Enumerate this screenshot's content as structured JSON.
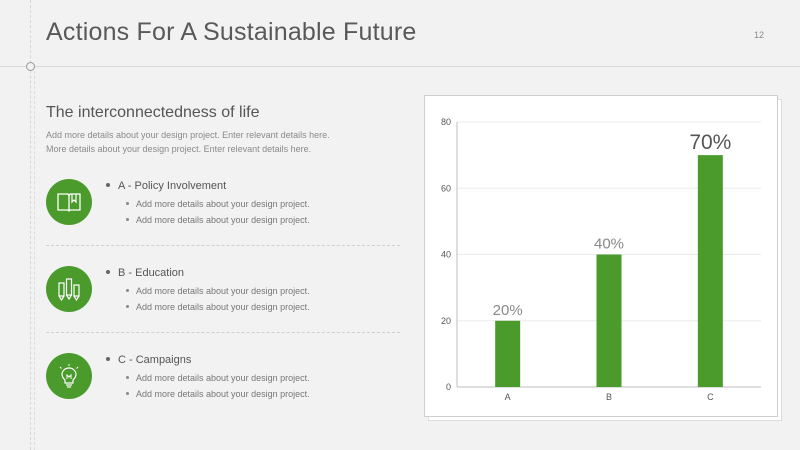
{
  "page": {
    "title": "Actions For A Sustainable Future",
    "page_number": "12"
  },
  "section": {
    "subtitle": "The interconnectedness of life",
    "description_line1": "Add more details about your design project. Enter relevant details here.",
    "description_line2": "More details about your design project. Enter relevant details here."
  },
  "items": [
    {
      "icon": "book-icon",
      "title": "A - Policy Involvement",
      "details": [
        "Add more details about your design project.",
        "Add more details about your design project."
      ]
    },
    {
      "icon": "pencils-icon",
      "title": "B - Education",
      "details": [
        "Add more details about your design project.",
        "Add more details about your design project."
      ]
    },
    {
      "icon": "lightbulb-icon",
      "title": "C - Campaigns",
      "details": [
        "Add more details about your design project.",
        "Add more details about your design project."
      ]
    }
  ],
  "colors": {
    "accent": "#4a9b2c",
    "title": "#595959",
    "text": "#777777"
  },
  "chart_data": {
    "type": "bar",
    "categories": [
      "A",
      "B",
      "C"
    ],
    "values": [
      20,
      40,
      70
    ],
    "data_labels": [
      "20%",
      "40%",
      "70%"
    ],
    "yticks": [
      0,
      20,
      40,
      60,
      80
    ],
    "ylim": [
      0,
      80
    ],
    "grid": true,
    "bar_color": "#4a9b2c"
  }
}
